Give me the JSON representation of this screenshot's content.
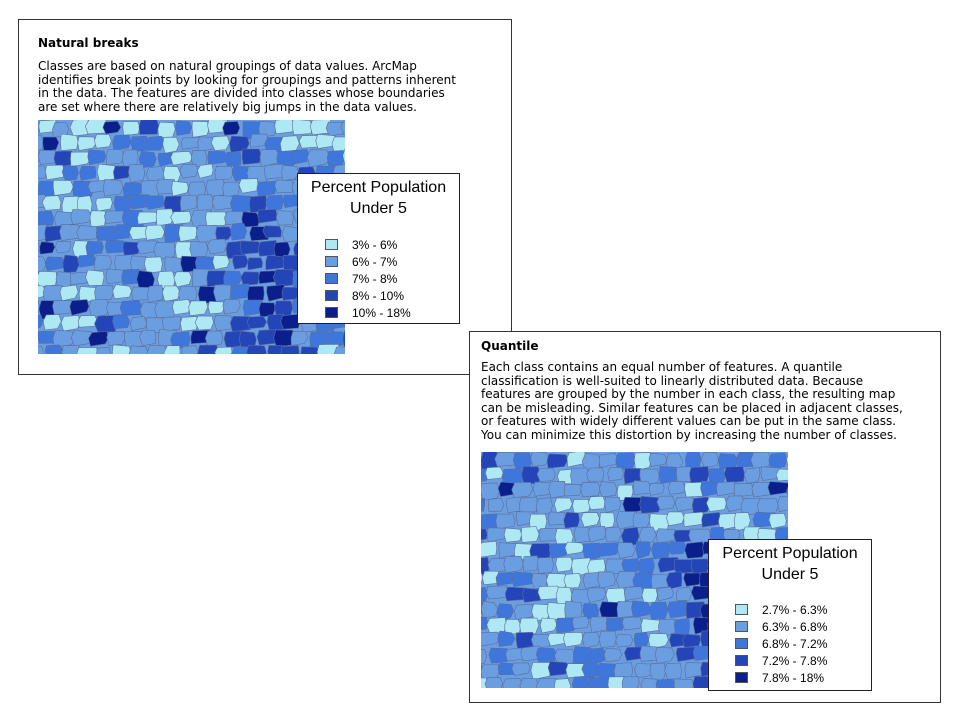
{
  "panels": [
    {
      "title": "Natural breaks",
      "description": [
        "Classes are based on natural groupings of data values. ArcMap",
        "identifies break points by looking for groupings and patterns inherent",
        "in the data. The features are divided into classes whose boundaries",
        "are set where there are relatively big jumps in the data values."
      ],
      "legend": {
        "title_lines": [
          "Percent Population",
          "Under 5"
        ],
        "classes": [
          {
            "label": "3% - 6%",
            "color": "#aee8f2"
          },
          {
            "label": "6% - 7%",
            "color": "#6b9ee0"
          },
          {
            "label": "7% - 8%",
            "color": "#3f76dc"
          },
          {
            "label": "8% - 10%",
            "color": "#2345b8"
          },
          {
            "label": "10% - 18%",
            "color": "#0b1f8c"
          }
        ]
      }
    },
    {
      "title": "Quantile",
      "description": [
        "Each class contains an equal number of features. A quantile",
        "classification is well-suited to linearly distributed data. Because",
        "features are grouped by the number in each class, the resulting map",
        "can be misleading. Similar features can be placed in adjacent classes,",
        "or features with widely different values can be put in the same class.",
        "You can minimize this distortion by increasing the number of classes."
      ],
      "legend": {
        "title_lines": [
          "Percent Population",
          "Under 5"
        ],
        "classes": [
          {
            "label": "2.7% - 6.3%",
            "color": "#aee8f2"
          },
          {
            "label": "6.3% - 6.8%",
            "color": "#6b9ee0"
          },
          {
            "label": "6.8% - 7.2%",
            "color": "#3f76dc"
          },
          {
            "label": "7.2% - 7.8%",
            "color": "#2345b8"
          },
          {
            "label": "7.8% - 18%",
            "color": "#0b1f8c"
          }
        ]
      }
    }
  ]
}
